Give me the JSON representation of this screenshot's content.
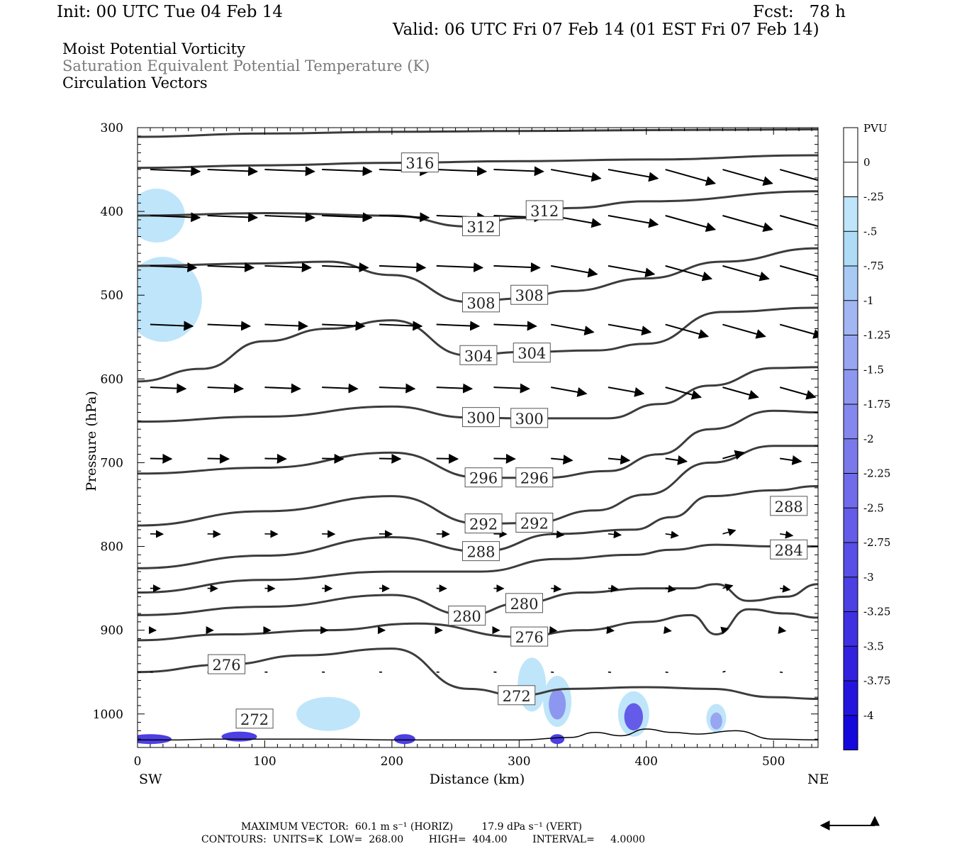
{
  "header": {
    "init": "Init: 00 UTC Tue 04 Feb 14",
    "fcst": "Fcst:   78 h",
    "valid": "Valid: 06 UTC Fri 07 Feb 14 (01 EST Fri 07 Feb 14)"
  },
  "fields": {
    "mpv": "Moist Potential Vorticity",
    "theta": "Saturation Equivalent Potential Temperature (K)",
    "vectors": "Circulation Vectors"
  },
  "axes": {
    "ylabel": "Pressure (hPa)",
    "xlabel": "Distance (km)",
    "left_end": "SW",
    "right_end": "NE",
    "y_ticks": [
      "300",
      "400",
      "500",
      "600",
      "700",
      "800",
      "900",
      "1000"
    ],
    "x_ticks": [
      "0",
      "100",
      "200",
      "300",
      "400",
      "500"
    ]
  },
  "colorbar": {
    "title": "PVU",
    "labels": [
      "0",
      "-.25",
      "-.5",
      "-.75",
      "-1",
      "-1.25",
      "-1.5",
      "-1.75",
      "-2",
      "-2.25",
      "-2.5",
      "-2.75",
      "-3",
      "-3.25",
      "-3.5",
      "-3.75",
      "-4"
    ],
    "colors": [
      "#ffffff",
      "#ffffff",
      "#bfe5fa",
      "#aedcf7",
      "#a9c9f5",
      "#a2b6f3",
      "#98a6f2",
      "#8e97f0",
      "#8488ee",
      "#7a79ec",
      "#6f6bea",
      "#645ce8",
      "#594ee6",
      "#4c3fe4",
      "#3f30e2",
      "#3222e0",
      "#2415de",
      "#1508dc"
    ]
  },
  "footer": {
    "line1": "MAXIMUM VECTOR:  60.1 m s⁻¹ (HORIZ)         17.9 dPa s⁻¹ (VERT)",
    "line2": "CONTOURS:  UNITS=K  LOW=  268.00        HIGH=  404.00        INTERVAL=     4.0000"
  },
  "chart_data": {
    "type": "cross-section",
    "x_range_km": [
      0,
      535
    ],
    "y_range_hpa": [
      300,
      1040
    ],
    "y_scale": "linear",
    "contour_labels": [
      {
        "text": "316",
        "x": 222,
        "p": 342
      },
      {
        "text": "312",
        "x": 270,
        "p": 418
      },
      {
        "text": "312",
        "x": 320,
        "p": 399
      },
      {
        "text": "308",
        "x": 270,
        "p": 509
      },
      {
        "text": "308",
        "x": 308,
        "p": 500
      },
      {
        "text": "304",
        "x": 268,
        "p": 572
      },
      {
        "text": "304",
        "x": 310,
        "p": 569
      },
      {
        "text": "300",
        "x": 270,
        "p": 646
      },
      {
        "text": "300",
        "x": 308,
        "p": 647
      },
      {
        "text": "296",
        "x": 272,
        "p": 718
      },
      {
        "text": "296",
        "x": 312,
        "p": 718
      },
      {
        "text": "292",
        "x": 272,
        "p": 773
      },
      {
        "text": "292",
        "x": 312,
        "p": 772
      },
      {
        "text": "288",
        "x": 270,
        "p": 806
      },
      {
        "text": "288",
        "x": 512,
        "p": 752
      },
      {
        "text": "284",
        "x": 512,
        "p": 804
      },
      {
        "text": "280",
        "x": 259,
        "p": 883
      },
      {
        "text": "280",
        "x": 304,
        "p": 868
      },
      {
        "text": "276",
        "x": 70,
        "p": 941
      },
      {
        "text": "276",
        "x": 308,
        "p": 908
      },
      {
        "text": "272",
        "x": 92,
        "p": 1006
      },
      {
        "text": "272",
        "x": 298,
        "p": 978
      }
    ],
    "theta_contours": [
      {
        "value": 320,
        "x": [
          0,
          100,
          200,
          300,
          400,
          535
        ],
        "p": [
          311,
          307,
          305,
          304,
          303,
          302
        ]
      },
      {
        "value": 316,
        "x": [
          0,
          100,
          200,
          300,
          400,
          535
        ],
        "p": [
          348,
          345,
          342,
          340,
          338,
          333
        ]
      },
      {
        "value": 312,
        "x": [
          0,
          100,
          200,
          260,
          300,
          340,
          400,
          535
        ],
        "p": [
          405,
          402,
          405,
          418,
          408,
          396,
          388,
          376
        ]
      },
      {
        "value": 308,
        "x": [
          0,
          100,
          150,
          200,
          260,
          300,
          340,
          400,
          460,
          535
        ],
        "p": [
          465,
          462,
          460,
          476,
          508,
          504,
          495,
          480,
          460,
          444
        ]
      },
      {
        "value": 304,
        "x": [
          0,
          50,
          100,
          150,
          200,
          260,
          300,
          360,
          400,
          460,
          535
        ],
        "p": [
          603,
          588,
          555,
          540,
          530,
          572,
          568,
          566,
          558,
          520,
          515
        ]
      },
      {
        "value": 300,
        "x": [
          0,
          100,
          200,
          260,
          300,
          370,
          410,
          450,
          500,
          535
        ],
        "p": [
          651,
          645,
          633,
          646,
          647,
          647,
          630,
          608,
          587,
          586
        ]
      },
      {
        "value": 296,
        "x": [
          0,
          100,
          200,
          270,
          320,
          370,
          410,
          450,
          500,
          535
        ],
        "p": [
          713,
          706,
          688,
          718,
          718,
          710,
          690,
          660,
          638,
          640
        ]
      },
      {
        "value": 292,
        "x": [
          0,
          100,
          200,
          270,
          310,
          360,
          400,
          450,
          500,
          535
        ],
        "p": [
          775,
          758,
          740,
          773,
          772,
          757,
          738,
          700,
          680,
          680
        ]
      },
      {
        "value": 288,
        "x": [
          0,
          100,
          200,
          270,
          330,
          390,
          420,
          450,
          500,
          535
        ],
        "p": [
          826,
          811,
          789,
          806,
          785,
          780,
          765,
          740,
          733,
          728
        ]
      },
      {
        "value": 284,
        "x": [
          0,
          100,
          200,
          270,
          330,
          390,
          420,
          455,
          500,
          535
        ],
        "p": [
          855,
          840,
          830,
          830,
          815,
          810,
          804,
          798,
          800,
          800
        ]
      },
      {
        "value": 280,
        "x": [
          0,
          100,
          200,
          260,
          300,
          350,
          400,
          435,
          455,
          480,
          510,
          535
        ],
        "p": [
          882,
          872,
          858,
          882,
          868,
          855,
          850,
          850,
          845,
          865,
          860,
          845
        ]
      },
      {
        "value": 276,
        "x": [
          0,
          70,
          150,
          220,
          300,
          350,
          400,
          435,
          455,
          480,
          510,
          535
        ],
        "p": [
          912,
          905,
          900,
          892,
          908,
          900,
          890,
          882,
          905,
          875,
          880,
          885
        ]
      },
      {
        "value": 272,
        "x": [
          0,
          70,
          130,
          200,
          260,
          300,
          340,
          400,
          450,
          500,
          535
        ],
        "p": [
          950,
          941,
          930,
          922,
          970,
          978,
          970,
          968,
          970,
          980,
          982
        ]
      }
    ],
    "colorbar_levels_pvu": [
      0,
      -0.25,
      -0.5,
      -0.75,
      -1,
      -1.25,
      -1.5,
      -1.75,
      -2,
      -2.25,
      -2.5,
      -2.75,
      -3,
      -3.25,
      -3.5,
      -3.75,
      -4
    ],
    "mpv_areas": [
      {
        "x_center": 15,
        "p_center": 405,
        "min_pvu": -0.5
      },
      {
        "x_center": 20,
        "p_center": 505,
        "min_pvu": -0.5
      },
      {
        "x_center": 150,
        "p_center": 1000,
        "min_pvu": -0.5
      },
      {
        "x_center": 310,
        "p_center": 965,
        "min_pvu": -0.5
      },
      {
        "x_center": 330,
        "p_center": 985,
        "min_pvu": -1.5
      },
      {
        "x_center": 390,
        "p_center": 1000,
        "min_pvu": -2.5
      },
      {
        "x_center": 455,
        "p_center": 1005,
        "min_pvu": -1.25
      }
    ],
    "vector_levels_hpa": [
      350,
      405,
      465,
      535,
      610,
      695,
      785,
      850,
      900,
      950
    ],
    "max_vector": {
      "horiz": "60.1 m s-1",
      "vert": "17.9 dPa s-1"
    },
    "contour_info": {
      "units": "K",
      "low": 268.0,
      "high": 404.0,
      "interval": 4.0
    }
  }
}
